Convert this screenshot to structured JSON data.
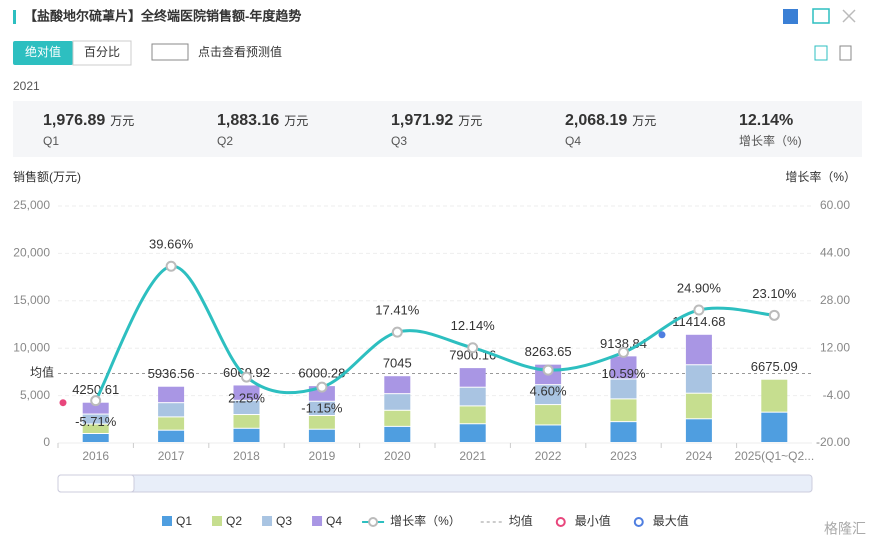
{
  "header": {
    "title": "【盐酸地尔硫䓬片】全终端医院销售额-年度趋势"
  },
  "toolbar": {
    "absolute": "绝对值",
    "percent": "百分比",
    "forecast": "点击查看预测值"
  },
  "summary": {
    "year": "2021",
    "items": [
      {
        "value": "1,976.89",
        "unit": "万元",
        "label": "Q1"
      },
      {
        "value": "1,883.16",
        "unit": "万元",
        "label": "Q2"
      },
      {
        "value": "1,971.92",
        "unit": "万元",
        "label": "Q3"
      },
      {
        "value": "2,068.19",
        "unit": "万元",
        "label": "Q4"
      },
      {
        "value": "12.14%",
        "label": "增长率（%)"
      }
    ]
  },
  "chart_data": {
    "type": "bar",
    "stacked": true,
    "ylabel": "销售额(万元)",
    "y2label": "增长率（%）",
    "categories": [
      "2016",
      "2017",
      "2018",
      "2019",
      "2020",
      "2021",
      "2022",
      "2023",
      "2024",
      "2025(Q1~Q2..."
    ],
    "ylim": [
      0,
      25000
    ],
    "yticks": [
      0,
      {
        "value": 5000,
        "label": "5,000"
      },
      {
        "value": 10000,
        "label": "10,000"
      },
      {
        "value": 15000,
        "label": "15,000"
      },
      {
        "value": 20000,
        "label": "20,000"
      },
      {
        "value": 25000,
        "label": "25,000"
      }
    ],
    "y2lim": [
      -20,
      60
    ],
    "y2ticks": [
      {
        "value": -20,
        "label": "-20.00"
      },
      {
        "value": -4,
        "label": "-4.00"
      },
      {
        "value": 12,
        "label": "12.00"
      },
      {
        "value": 28,
        "label": "28.00"
      },
      {
        "value": 44,
        "label": "44.00"
      },
      {
        "value": 60,
        "label": "60.00"
      }
    ],
    "series": [
      {
        "name": "Q1",
        "color": "#4f9ee0",
        "values": [
          950,
          1300,
          1500,
          1400,
          1700,
          1976.89,
          1850,
          2200,
          2500,
          3200
        ]
      },
      {
        "name": "Q2",
        "color": "#c6de8f",
        "values": [
          1000,
          1400,
          1450,
          1450,
          1700,
          1883.16,
          2150,
          2400,
          2700,
          3475.09
        ]
      },
      {
        "name": "Q3",
        "color": "#a9c4e2",
        "values": [
          1050,
          1500,
          1500,
          1500,
          1750,
          1971.92,
          2100,
          2100,
          3000,
          null
        ]
      },
      {
        "name": "Q4",
        "color": "#a996e4",
        "values": [
          1250.61,
          1736.56,
          1619.92,
          1650.28,
          1895,
          2068.19,
          2163.65,
          2438.84,
          3214.68,
          null
        ]
      },
      {
        "name": "增长率（%）",
        "type": "line",
        "axis": "y2",
        "color": "#2dbfc0",
        "values": [
          -5.71,
          39.66,
          2.25,
          -1.15,
          17.41,
          12.14,
          4.6,
          10.59,
          24.9,
          23.1
        ],
        "value_labels": [
          "-5.71%",
          "39.66%",
          "2.25%",
          "-1.15%",
          "17.41%",
          "12.14%",
          "4.60%",
          "10.59%",
          "24.90%",
          "23.10%"
        ]
      }
    ],
    "totals": [
      4250.61,
      5936.56,
      6069.92,
      6000.28,
      7045,
      7900.16,
      8263.65,
      9138.84,
      11414.68,
      6675.09
    ],
    "mean": {
      "name": "均值",
      "value": 7335
    },
    "min_label": "最小值",
    "max_label": "最大值",
    "watermark": "格隆汇"
  }
}
